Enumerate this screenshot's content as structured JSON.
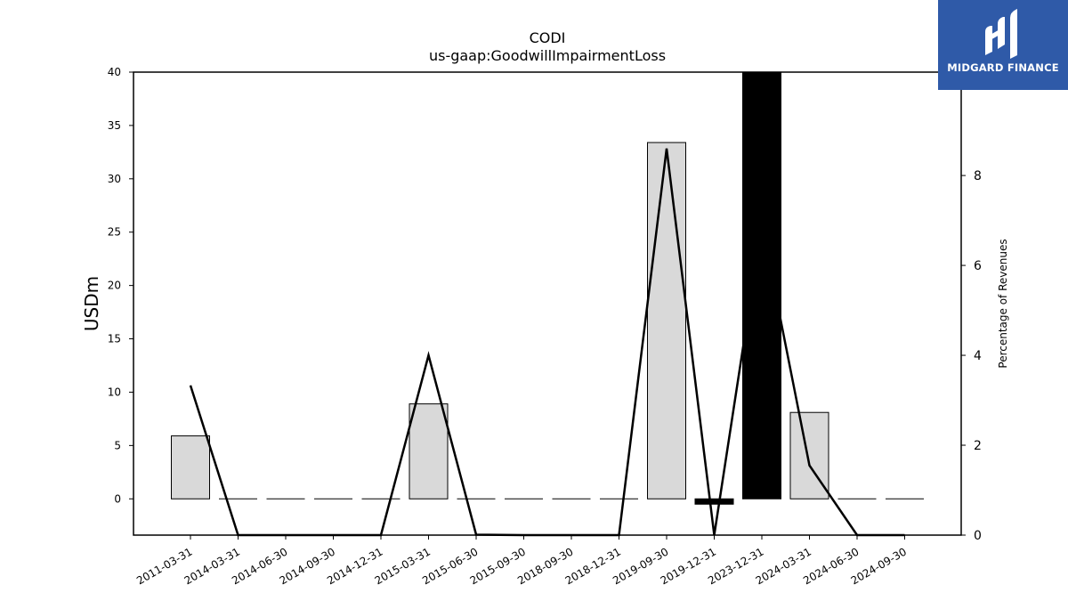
{
  "chart_data": {
    "type": "bar",
    "title": "CODI",
    "subtitle": "us-gaap:GoodwillImpairmentLoss",
    "ylabel": "USDm",
    "ylabel_right": "Percentage of Revenues",
    "ylim": [
      -3.4,
      40
    ],
    "ylim_right": [
      0,
      10.3
    ],
    "yticks": [
      0,
      5,
      10,
      15,
      20,
      25,
      30,
      35,
      40
    ],
    "yticks_right": [
      0,
      2,
      4,
      6,
      8
    ],
    "categories": [
      "2011-03-31",
      "2014-03-31",
      "2014-06-30",
      "2014-09-30",
      "2014-12-31",
      "2015-03-31",
      "2015-06-30",
      "2015-09-30",
      "2018-09-30",
      "2018-12-31",
      "2019-09-30",
      "2019-12-31",
      "2023-12-31",
      "2024-03-31",
      "2024-06-30",
      "2024-09-30"
    ],
    "series": [
      {
        "axis": "left",
        "kind": "bar",
        "values": [
          5.9,
          0,
          0,
          0,
          0,
          8.9,
          0,
          0,
          0,
          0,
          33.4,
          -0.3,
          40,
          8.1,
          0,
          0
        ],
        "highlight_index": [
          11,
          12
        ],
        "color": "#d9d9d9",
        "highlight_color": "#000000"
      },
      {
        "axis": "right",
        "kind": "line",
        "values": [
          3.33,
          0,
          0,
          0,
          0,
          4.0,
          0.01,
          0,
          0,
          0,
          8.6,
          0,
          6.9,
          1.55,
          0,
          0
        ],
        "color": "#000000"
      }
    ]
  },
  "logo": {
    "text": "MIDGARD FINANCE",
    "bg_color": "#2f5aa8"
  }
}
